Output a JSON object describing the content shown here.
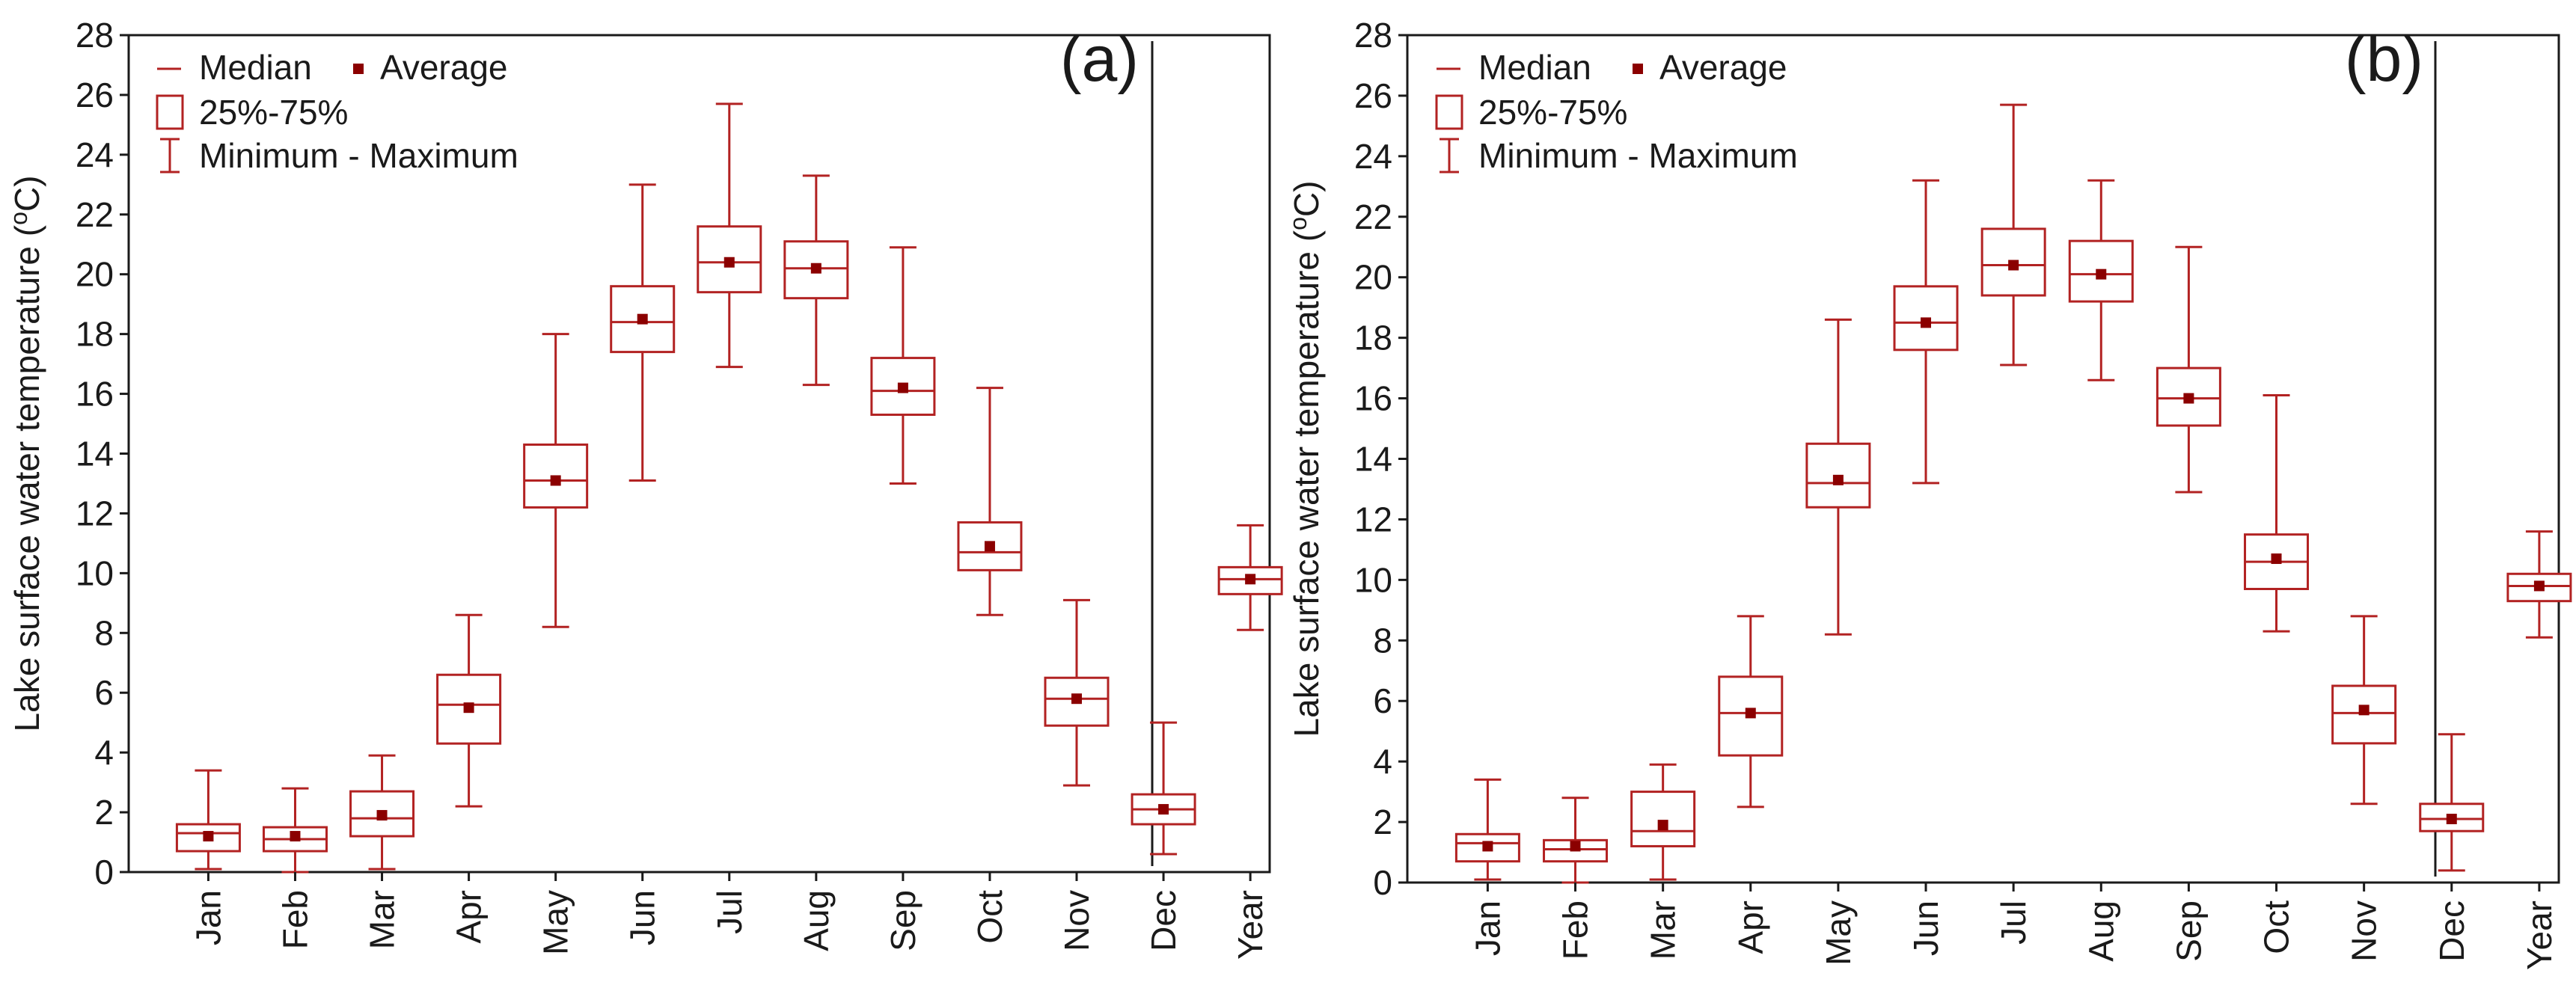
{
  "chart_data": [
    {
      "type": "boxplot",
      "panel_label": "(a)",
      "ylabel": "Lake surface water temperature (°C)",
      "ylabel_main": "Lake surface water temperature (",
      "ylabel_o": "o",
      "ylabel_end": "C)",
      "ylim": [
        0,
        28
      ],
      "yticks": [
        "0",
        "2",
        "4",
        "6",
        "8",
        "10",
        "12",
        "14",
        "16",
        "18",
        "20",
        "22",
        "24",
        "26",
        "28"
      ],
      "categories": [
        "Jan",
        "Feb",
        "Mar",
        "Apr",
        "May",
        "Jun",
        "Jul",
        "Aug",
        "Sep",
        "Oct",
        "Nov",
        "Dec",
        "Year"
      ],
      "separator_before": "Year",
      "series": [
        {
          "name": "Jan",
          "min": 0.1,
          "q1": 0.7,
          "median": 1.3,
          "q3": 1.6,
          "max": 3.4,
          "mean": 1.2
        },
        {
          "name": "Feb",
          "min": 0.0,
          "q1": 0.7,
          "median": 1.1,
          "q3": 1.5,
          "max": 2.8,
          "mean": 1.2
        },
        {
          "name": "Mar",
          "min": 0.1,
          "q1": 1.2,
          "median": 1.8,
          "q3": 2.7,
          "max": 3.9,
          "mean": 1.9
        },
        {
          "name": "Apr",
          "min": 2.2,
          "q1": 4.3,
          "median": 5.6,
          "q3": 6.6,
          "max": 8.6,
          "mean": 5.5
        },
        {
          "name": "May",
          "min": 8.2,
          "q1": 12.2,
          "median": 13.1,
          "q3": 14.3,
          "max": 18.0,
          "mean": 13.1
        },
        {
          "name": "Jun",
          "min": 13.1,
          "q1": 17.4,
          "median": 18.4,
          "q3": 19.6,
          "max": 23.0,
          "mean": 18.5
        },
        {
          "name": "Jul",
          "min": 16.9,
          "q1": 19.4,
          "median": 20.4,
          "q3": 21.6,
          "max": 25.7,
          "mean": 20.4
        },
        {
          "name": "Aug",
          "min": 16.3,
          "q1": 19.2,
          "median": 20.2,
          "q3": 21.1,
          "max": 23.3,
          "mean": 20.2
        },
        {
          "name": "Sep",
          "min": 13.0,
          "q1": 15.3,
          "median": 16.1,
          "q3": 17.2,
          "max": 20.9,
          "mean": 16.2
        },
        {
          "name": "Oct",
          "min": 8.6,
          "q1": 10.1,
          "median": 10.7,
          "q3": 11.7,
          "max": 16.2,
          "mean": 10.9
        },
        {
          "name": "Nov",
          "min": 2.9,
          "q1": 4.9,
          "median": 5.8,
          "q3": 6.5,
          "max": 9.1,
          "mean": 5.8
        },
        {
          "name": "Dec",
          "min": 0.6,
          "q1": 1.6,
          "median": 2.1,
          "q3": 2.6,
          "max": 5.0,
          "mean": 2.1
        },
        {
          "name": "Year",
          "min": 8.1,
          "q1": 9.3,
          "median": 9.8,
          "q3": 10.2,
          "max": 11.6,
          "mean": 9.8
        }
      ]
    },
    {
      "type": "boxplot",
      "panel_label": "(b)",
      "ylabel": "Lake surface water temperature (°C)",
      "ylabel_main": "Lake surface water temperature (",
      "ylabel_o": "o",
      "ylabel_end": "C)",
      "ylim": [
        0,
        28
      ],
      "yticks": [
        "0",
        "2",
        "4",
        "6",
        "8",
        "10",
        "12",
        "14",
        "16",
        "18",
        "20",
        "22",
        "24",
        "26",
        "28"
      ],
      "categories": [
        "Jan",
        "Feb",
        "Mar",
        "Apr",
        "May",
        "Jun",
        "Jul",
        "Aug",
        "Sep",
        "Oct",
        "Nov",
        "Dec",
        "Year"
      ],
      "separator_before": "Year",
      "series": [
        {
          "name": "Jan",
          "min": 0.1,
          "q1": 0.7,
          "median": 1.3,
          "q3": 1.6,
          "max": 3.4,
          "mean": 1.2
        },
        {
          "name": "Feb",
          "min": 0.0,
          "q1": 0.7,
          "median": 1.1,
          "q3": 1.4,
          "max": 2.8,
          "mean": 1.2
        },
        {
          "name": "Mar",
          "min": 0.1,
          "q1": 1.2,
          "median": 1.7,
          "q3": 3.0,
          "max": 3.9,
          "mean": 1.9
        },
        {
          "name": "Apr",
          "min": 2.5,
          "q1": 4.2,
          "median": 5.6,
          "q3": 6.8,
          "max": 8.8,
          "mean": 5.6
        },
        {
          "name": "May",
          "min": 8.2,
          "q1": 12.4,
          "median": 13.2,
          "q3": 14.5,
          "max": 18.6,
          "mean": 13.3
        },
        {
          "name": "Jun",
          "min": 13.2,
          "q1": 17.6,
          "median": 18.5,
          "q3": 19.7,
          "max": 23.2,
          "mean": 18.5
        },
        {
          "name": "Jul",
          "min": 17.1,
          "q1": 19.4,
          "median": 20.4,
          "q3": 21.6,
          "max": 25.7,
          "mean": 20.4
        },
        {
          "name": "Aug",
          "min": 16.6,
          "q1": 19.2,
          "median": 20.1,
          "q3": 21.2,
          "max": 23.2,
          "mean": 20.1
        },
        {
          "name": "Sep",
          "min": 12.9,
          "q1": 15.1,
          "median": 16.0,
          "q3": 17.0,
          "max": 21.0,
          "mean": 16.0
        },
        {
          "name": "Oct",
          "min": 8.3,
          "q1": 9.7,
          "median": 10.6,
          "q3": 11.5,
          "max": 16.1,
          "mean": 10.7
        },
        {
          "name": "Nov",
          "min": 2.6,
          "q1": 4.6,
          "median": 5.6,
          "q3": 6.5,
          "max": 8.8,
          "mean": 5.7
        },
        {
          "name": "Dec",
          "min": 0.4,
          "q1": 1.7,
          "median": 2.1,
          "q3": 2.6,
          "max": 4.9,
          "mean": 2.1
        },
        {
          "name": "Year",
          "min": 8.1,
          "q1": 9.3,
          "median": 9.8,
          "q3": 10.2,
          "max": 11.6,
          "mean": 9.8
        }
      ]
    }
  ],
  "legend": {
    "median_label": "Median",
    "average_label": "Average",
    "box_label": "25%-75%",
    "whisker_label": "Minimum - Maximum"
  },
  "colors": {
    "series": "#b22222",
    "mean_marker": "#8b0000",
    "axis": "#1a1a1a"
  }
}
